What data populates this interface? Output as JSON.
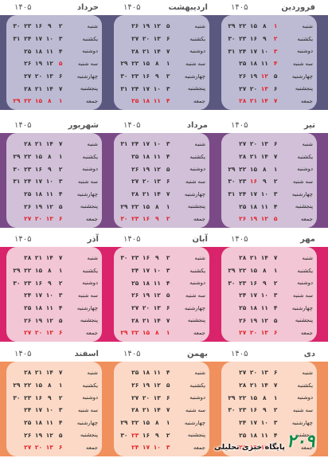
{
  "day_names": [
    "شنبه",
    "یکشنبه",
    "دوشنبه",
    "سه شنبه",
    "چهارشنبه",
    "پنجشنبه",
    "جمعه"
  ],
  "logo": {
    "text": "پایگاه خبری تحلیلی",
    "mark": "۲۰۹"
  },
  "seasons": [
    {
      "bg": "#5b5880",
      "card": "#bdbbd3",
      "months": [
        {
          "name": "فروردین",
          "year": "۱۴۰۵",
          "rows": [
            [
              "۱",
              "۸",
              "۱۵",
              "۲۲",
              "۲۹"
            ],
            [
              "۲",
              "۹",
              "۱۶",
              "۲۳",
              "۳۰"
            ],
            [
              "۳",
              "۱۰",
              "۱۷",
              "۲۴",
              "۳۱"
            ],
            [
              "۴",
              "۱۱",
              "۱۸",
              "۲۵",
              ""
            ],
            [
              "۵",
              "۱۲",
              "۱۹",
              "۲۶",
              ""
            ],
            [
              "۶",
              "۱۳",
              "۲۰",
              "۲۷",
              ""
            ],
            [
              "۷",
              "۱۴",
              "۲۱",
              "۲۸",
              ""
            ]
          ],
          "holidays": [
            [
              0,
              0
            ],
            [
              1,
              0
            ],
            [
              2,
              0
            ],
            [
              3,
              0
            ],
            [
              4,
              1
            ],
            [
              5,
              1
            ]
          ]
        },
        {
          "name": "اردیبهشت",
          "year": "۱۴۰۵",
          "rows": [
            [
              "۵",
              "۱۲",
              "۱۹",
              "۲۶",
              ""
            ],
            [
              "۶",
              "۱۳",
              "۲۰",
              "۲۷",
              ""
            ],
            [
              "۷",
              "۱۴",
              "۲۱",
              "۲۸",
              ""
            ],
            [
              "۱",
              "۸",
              "۱۵",
              "۲۲",
              "۲۹"
            ],
            [
              "۲",
              "۹",
              "۱۶",
              "۲۳",
              "۳۰"
            ],
            [
              "۳",
              "۱۰",
              "۱۷",
              "۲۴",
              "۳۱"
            ],
            [
              "۴",
              "۱۱",
              "۱۸",
              "۲۵",
              ""
            ]
          ],
          "holidays": []
        },
        {
          "name": "خرداد",
          "year": "۱۴۰۵",
          "rows": [
            [
              "۲",
              "۹",
              "۱۶",
              "۲۳",
              "۳۰"
            ],
            [
              "۳",
              "۱۰",
              "۱۷",
              "۲۴",
              "۳۱"
            ],
            [
              "۴",
              "۱۱",
              "۱۸",
              "۲۵",
              ""
            ],
            [
              "۵",
              "۱۲",
              "۱۹",
              "۲۶",
              ""
            ],
            [
              "۶",
              "۱۳",
              "۲۰",
              "۲۷",
              ""
            ],
            [
              "۷",
              "۱۴",
              "۲۱",
              "۲۸",
              ""
            ],
            [
              "۱",
              "۸",
              "۱۵",
              "۲۲",
              "۲۹"
            ]
          ],
          "holidays": [
            [
              3,
              0
            ]
          ]
        }
      ]
    },
    {
      "bg": "#7a4a87",
      "card": "#d1c0d8",
      "months": [
        {
          "name": "تیر",
          "year": "۱۴۰۵",
          "rows": [
            [
              "۶",
              "۱۳",
              "۲۰",
              "۲۷",
              ""
            ],
            [
              "۷",
              "۱۴",
              "۲۱",
              "۲۸",
              ""
            ],
            [
              "۱",
              "۸",
              "۱۵",
              "۲۲",
              "۲۹"
            ],
            [
              "۲",
              "۹",
              "۱۶",
              "۲۳",
              "۳۰"
            ],
            [
              "۳",
              "۱۰",
              "۱۷",
              "۲۴",
              "۳۱"
            ],
            [
              "۴",
              "۱۱",
              "۱۸",
              "۲۵",
              ""
            ],
            [
              "۵",
              "۱۲",
              "۱۹",
              "۲۶",
              ""
            ]
          ],
          "holidays": [
            [
              3,
              2
            ]
          ]
        },
        {
          "name": "مرداد",
          "year": "۱۴۰۵",
          "rows": [
            [
              "۳",
              "۱۰",
              "۱۷",
              "۲۴",
              "۳۱"
            ],
            [
              "۴",
              "۱۱",
              "۱۸",
              "۲۵",
              ""
            ],
            [
              "۵",
              "۱۲",
              "۱۹",
              "۲۶",
              ""
            ],
            [
              "۶",
              "۱۳",
              "۲۰",
              "۲۷",
              ""
            ],
            [
              "۷",
              "۱۴",
              "۲۱",
              "۲۸",
              ""
            ],
            [
              "۱",
              "۸",
              "۱۵",
              "۲۲",
              "۲۹"
            ],
            [
              "۲",
              "۹",
              "۱۶",
              "۲۳",
              "۳۰"
            ]
          ],
          "holidays": []
        },
        {
          "name": "شهریور",
          "year": "۱۴۰۵",
          "rows": [
            [
              "۷",
              "۱۴",
              "۲۱",
              "۲۸",
              ""
            ],
            [
              "۱",
              "۸",
              "۱۵",
              "۲۲",
              "۲۹"
            ],
            [
              "۲",
              "۹",
              "۱۶",
              "۲۳",
              "۳۰"
            ],
            [
              "۳",
              "۱۰",
              "۱۷",
              "۲۴",
              "۳۱"
            ],
            [
              "۴",
              "۱۱",
              "۱۸",
              "۲۵",
              ""
            ],
            [
              "۵",
              "۱۲",
              "۱۹",
              "۲۶",
              ""
            ],
            [
              "۶",
              "۱۳",
              "۲۰",
              "۲۷",
              ""
            ]
          ],
          "holidays": []
        }
      ]
    },
    {
      "bg": "#d9246b",
      "card": "#f2c6d4",
      "months": [
        {
          "name": "مهر",
          "year": "۱۴۰۵",
          "rows": [
            [
              "۷",
              "۱۴",
              "۲۱",
              "۲۸",
              ""
            ],
            [
              "۱",
              "۸",
              "۱۵",
              "۲۲",
              "۲۹"
            ],
            [
              "۲",
              "۹",
              "۱۶",
              "۲۳",
              "۳۰"
            ],
            [
              "۳",
              "۱۰",
              "۱۷",
              "۲۴",
              ""
            ],
            [
              "۴",
              "۱۱",
              "۱۸",
              "۲۵",
              ""
            ],
            [
              "۵",
              "۱۲",
              "۱۹",
              "۲۶",
              ""
            ],
            [
              "۶",
              "۱۳",
              "۲۰",
              "۲۷",
              ""
            ]
          ],
          "holidays": []
        },
        {
          "name": "آبان",
          "year": "۱۴۰۵",
          "rows": [
            [
              "۲",
              "۹",
              "۱۶",
              "۲۳",
              "۳۰"
            ],
            [
              "۳",
              "۱۰",
              "۱۷",
              "۲۴",
              ""
            ],
            [
              "۴",
              "۱۱",
              "۱۸",
              "۲۵",
              ""
            ],
            [
              "۵",
              "۱۲",
              "۱۹",
              "۲۶",
              ""
            ],
            [
              "۶",
              "۱۳",
              "۲۰",
              "۲۷",
              ""
            ],
            [
              "۷",
              "۱۴",
              "۲۱",
              "۲۸",
              ""
            ],
            [
              "۱",
              "۸",
              "۱۵",
              "۲۲",
              "۲۹"
            ]
          ],
          "holidays": []
        },
        {
          "name": "آذر",
          "year": "۱۴۰۵",
          "rows": [
            [
              "۷",
              "۱۴",
              "۲۱",
              "۲۸",
              ""
            ],
            [
              "۱",
              "۸",
              "۱۵",
              "۲۲",
              "۲۹"
            ],
            [
              "۲",
              "۹",
              "۱۶",
              "۲۳",
              "۳۰"
            ],
            [
              "۳",
              "۱۰",
              "۱۷",
              "۲۴",
              ""
            ],
            [
              "۴",
              "۱۱",
              "۱۸",
              "۲۵",
              ""
            ],
            [
              "۵",
              "۱۲",
              "۱۹",
              "۲۶",
              ""
            ],
            [
              "۶",
              "۱۳",
              "۲۰",
              "۲۷",
              ""
            ]
          ],
          "holidays": []
        }
      ]
    },
    {
      "bg": "#f0905c",
      "card": "#fbd9c6",
      "months": [
        {
          "name": "دی",
          "year": "۱۴۰۵",
          "rows": [
            [
              "۶",
              "۱۳",
              "۲۰",
              "۲۷",
              ""
            ],
            [
              "۷",
              "۱۴",
              "۲۱",
              "۲۸",
              ""
            ],
            [
              "۱",
              "۸",
              "۱۵",
              "۲۲",
              "۲۹"
            ],
            [
              "۲",
              "۹",
              "۱۶",
              "۲۳",
              "۳۰"
            ],
            [
              "۳",
              "۱۰",
              "۱۷",
              "۲۴",
              ""
            ],
            [
              "۴",
              "۱۱",
              "۱۸",
              "۲۵",
              ""
            ],
            [
              "۵",
              "۱۲",
              "۱۹",
              "۲۶",
              ""
            ]
          ],
          "holidays": []
        },
        {
          "name": "بهمن",
          "year": "۱۴۰۵",
          "rows": [
            [
              "۴",
              "۱۱",
              "۱۸",
              "۲۵",
              ""
            ],
            [
              "۵",
              "۱۲",
              "۱۹",
              "۲۶",
              ""
            ],
            [
              "۶",
              "۱۳",
              "۲۰",
              "۲۷",
              ""
            ],
            [
              "۷",
              "۱۴",
              "۲۱",
              "۲۸",
              ""
            ],
            [
              "۱",
              "۸",
              "۱۵",
              "۲۲",
              "۲۹"
            ],
            [
              "۲",
              "۹",
              "۱۶",
              "۲۳",
              "۳۰"
            ],
            [
              "۳",
              "۱۰",
              "۱۷",
              "۲۴",
              ""
            ]
          ],
          "holidays": [
            [
              5,
              3
            ],
            [
              6,
              3
            ]
          ]
        },
        {
          "name": "اسفند",
          "year": "۱۴۰۵",
          "rows": [
            [
              "۷",
              "۱۴",
              "۲۱",
              "۲۸",
              ""
            ],
            [
              "۱",
              "۸",
              "۱۵",
              "۲۲",
              "۲۹"
            ],
            [
              "۲",
              "۹",
              "۱۶",
              "۲۳",
              "۳۰"
            ],
            [
              "۳",
              "۱۰",
              "۱۷",
              "۲۴",
              ""
            ],
            [
              "۴",
              "۱۱",
              "۱۸",
              "۲۵",
              ""
            ],
            [
              "۵",
              "۱۲",
              "۱۹",
              "۲۶",
              ""
            ],
            [
              "۶",
              "۱۳",
              "۲۰",
              "۲۷",
              ""
            ]
          ],
          "holidays": []
        }
      ]
    }
  ]
}
